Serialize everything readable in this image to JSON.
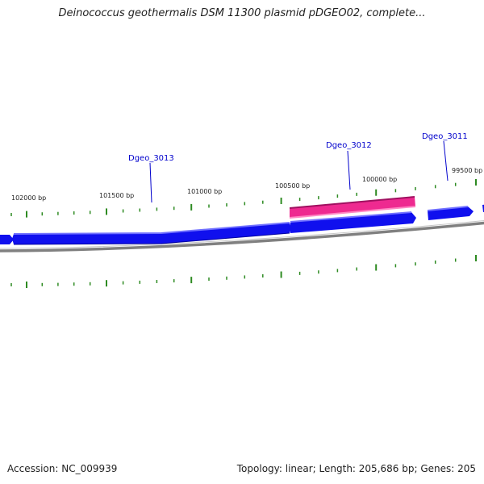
{
  "title": "Deinococcus geothermalis DSM 11300 plasmid pDGEO02, complete...",
  "footer": {
    "accession": "Accession: NC_009939",
    "summary": "Topology: linear; Length: 205,686 bp; Genes: 205"
  },
  "colors": {
    "forward_gene": "#1010ee",
    "reverse_gene": "#ee2a90",
    "ticks": "#2e8b22",
    "backbone": "#808080",
    "label": "#0000cc"
  },
  "position_labels": [
    "102000 bp",
    "101500 bp",
    "101000 bp",
    "100500 bp",
    "100000 bp",
    "99500 bp"
  ],
  "genes": [
    {
      "name": "Dgeo_3013",
      "strand": "forward"
    },
    {
      "name": "Dgeo_3012",
      "strand": "reverse"
    },
    {
      "name": "Dgeo_3011",
      "strand": "forward"
    }
  ]
}
